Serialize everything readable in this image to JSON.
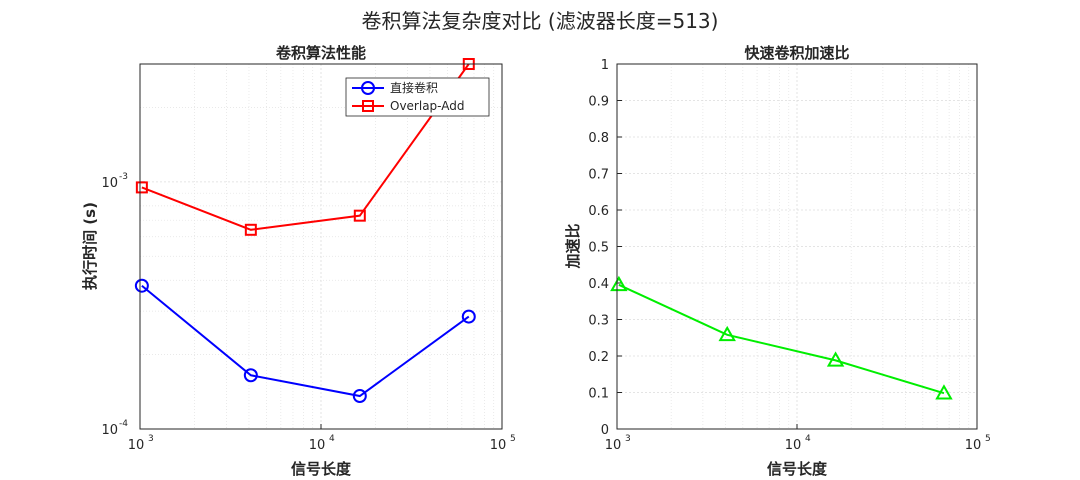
{
  "figure": {
    "title": "卷积算法复杂度对比 (滤波器长度=513)"
  },
  "chart_data": [
    {
      "type": "line",
      "title": "卷积算法性能",
      "xlabel": "信号长度",
      "ylabel": "执行时间 (s)",
      "xscale": "log",
      "yscale": "log",
      "xlim": [
        1000,
        100000
      ],
      "ylim": [
        0.0001,
        0.003
      ],
      "x_ticks": [
        {
          "base": "10",
          "exp": "3"
        },
        {
          "base": "10",
          "exp": "4"
        },
        {
          "base": "10",
          "exp": "5"
        }
      ],
      "y_ticks": [
        {
          "base": "10",
          "exp": "-4",
          "value": 0.0001
        },
        {
          "base": "10",
          "exp": "-3",
          "value": 0.001
        }
      ],
      "grid": true,
      "legend_position": "top-right",
      "x": [
        1024,
        4096,
        16384,
        65536
      ],
      "series": [
        {
          "name": "直接卷积",
          "color": "#0000ff",
          "marker": "circle",
          "values": [
            0.00038,
            0.000165,
            0.000136,
            0.000285
          ]
        },
        {
          "name": "Overlap-Add",
          "color": "#ff0000",
          "marker": "square",
          "values": [
            0.00095,
            0.00064,
            0.00073,
            0.003
          ]
        }
      ]
    },
    {
      "type": "line",
      "title": "快速卷积加速比",
      "xlabel": "信号长度",
      "ylabel": "加速比",
      "xscale": "log",
      "yscale": "linear",
      "xlim": [
        1000,
        100000
      ],
      "ylim": [
        0,
        1
      ],
      "x_ticks": [
        {
          "base": "10",
          "exp": "3"
        },
        {
          "base": "10",
          "exp": "4"
        },
        {
          "base": "10",
          "exp": "5"
        }
      ],
      "y_ticks": [
        "0",
        "0.1",
        "0.2",
        "0.3",
        "0.4",
        "0.5",
        "0.6",
        "0.7",
        "0.8",
        "0.9",
        "1"
      ],
      "grid": true,
      "x": [
        1024,
        4096,
        16384,
        65536
      ],
      "series": [
        {
          "color": "#00ee00",
          "marker": "triangle",
          "values": [
            0.395,
            0.258,
            0.188,
            0.098
          ]
        }
      ]
    }
  ]
}
